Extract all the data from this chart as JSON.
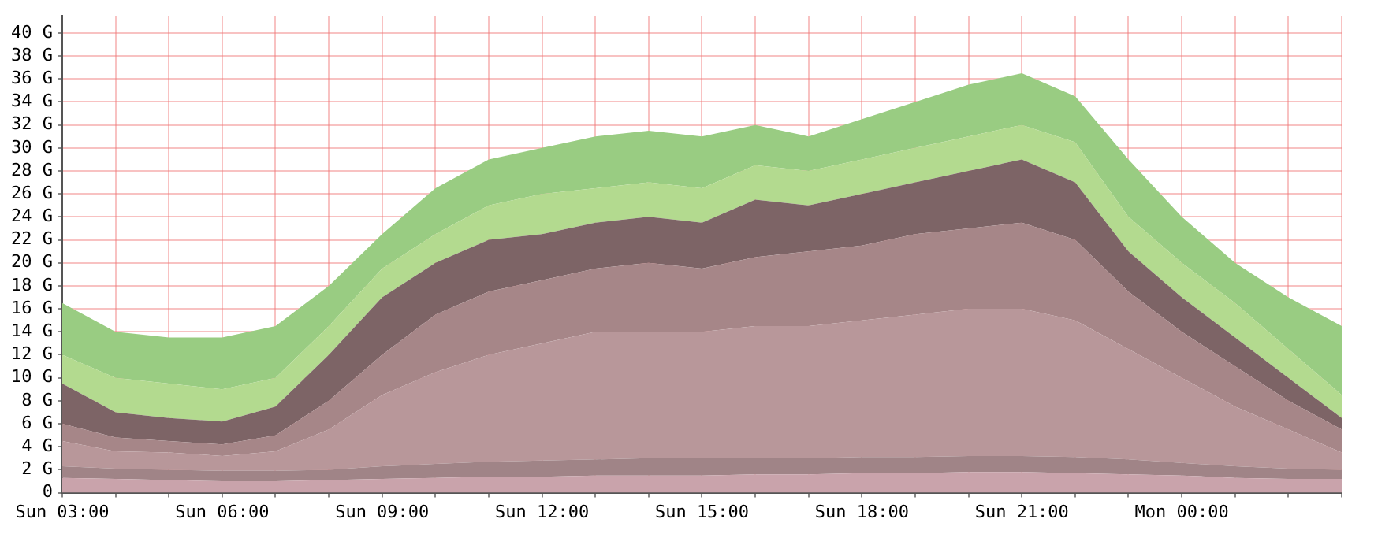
{
  "chart_data": {
    "type": "area",
    "stacked": true,
    "grid": true,
    "categories": [
      "Sun 03:00",
      null,
      null,
      "Sun 06:00",
      null,
      null,
      "Sun 09:00",
      null,
      null,
      "Sun 12:00",
      null,
      null,
      "Sun 15:00",
      null,
      null,
      "Sun 18:00",
      null,
      null,
      "Sun 21:00",
      null,
      null,
      "Mon 00:00",
      null,
      null,
      null
    ],
    "ylim": [
      0,
      41.5
    ],
    "yticks": [
      0,
      {
        "value": 2,
        "label": "2 G"
      },
      {
        "value": 4,
        "label": "4 G"
      },
      {
        "value": 6,
        "label": "6 G"
      },
      {
        "value": 8,
        "label": "8 G"
      },
      {
        "value": 10,
        "label": "10 G"
      },
      {
        "value": 12,
        "label": "12 G"
      },
      {
        "value": 14,
        "label": "14 G"
      },
      {
        "value": 16,
        "label": "16 G"
      },
      {
        "value": 18,
        "label": "18 G"
      },
      {
        "value": 20,
        "label": "20 G"
      },
      {
        "value": 22,
        "label": "22 G"
      },
      {
        "value": 24,
        "label": "24 G"
      },
      {
        "value": 26,
        "label": "26 G"
      },
      {
        "value": 28,
        "label": "28 G"
      },
      {
        "value": 30,
        "label": "30 G"
      },
      {
        "value": 32,
        "label": "32 G"
      },
      {
        "value": 34,
        "label": "34 G"
      },
      {
        "value": 36,
        "label": "36 G"
      },
      {
        "value": 38,
        "label": "38 G"
      },
      {
        "value": 40,
        "label": "40 G"
      }
    ],
    "series": [
      {
        "color": "#c9a3ab",
        "values": [
          1.3,
          1.2,
          1.1,
          1.0,
          1.0,
          1.1,
          1.2,
          1.3,
          1.4,
          1.4,
          1.5,
          1.5,
          1.5,
          1.6,
          1.6,
          1.7,
          1.7,
          1.8,
          1.8,
          1.7,
          1.6,
          1.5,
          1.3,
          1.2,
          1.2
        ]
      },
      {
        "color": "#a08487",
        "values": [
          1.0,
          0.9,
          0.9,
          0.9,
          0.9,
          0.9,
          1.1,
          1.2,
          1.3,
          1.4,
          1.4,
          1.5,
          1.5,
          1.4,
          1.4,
          1.4,
          1.4,
          1.4,
          1.4,
          1.4,
          1.3,
          1.1,
          1.0,
          0.9,
          0.8
        ]
      },
      {
        "color": "#b8979a",
        "values": [
          2.2,
          1.5,
          1.5,
          1.3,
          1.7,
          3.5,
          6.2,
          8.0,
          9.3,
          10.2,
          11.1,
          11.0,
          11.0,
          11.5,
          11.5,
          11.9,
          12.4,
          12.8,
          12.8,
          11.9,
          9.6,
          7.4,
          5.2,
          3.4,
          1.5
        ]
      },
      {
        "color": "#a68688",
        "values": [
          1.5,
          1.2,
          1.0,
          1.0,
          1.4,
          2.5,
          3.5,
          5.0,
          5.5,
          5.5,
          5.5,
          6.0,
          5.5,
          6.0,
          6.5,
          6.5,
          7.0,
          7.0,
          7.5,
          7.0,
          5.0,
          4.0,
          3.5,
          2.5,
          2.0
        ]
      },
      {
        "color": "#7d6466",
        "values": [
          3.5,
          2.2,
          2.0,
          2.0,
          2.5,
          4.0,
          5.0,
          4.5,
          4.5,
          4.0,
          4.0,
          4.0,
          4.0,
          5.0,
          4.0,
          4.5,
          4.5,
          5.0,
          5.5,
          5.0,
          3.5,
          3.0,
          2.5,
          2.0,
          1.0
        ]
      },
      {
        "color": "#b3da8f",
        "values": [
          2.5,
          3.0,
          3.0,
          2.8,
          2.5,
          2.5,
          2.5,
          2.5,
          3.0,
          3.5,
          3.0,
          3.0,
          3.0,
          3.0,
          3.0,
          3.0,
          3.0,
          3.0,
          3.0,
          3.5,
          3.0,
          3.0,
          3.0,
          2.5,
          2.0
        ]
      },
      {
        "color": "#99cc82",
        "values": [
          4.5,
          4.0,
          4.0,
          4.5,
          4.5,
          3.5,
          3.0,
          4.0,
          4.0,
          4.0,
          4.5,
          4.5,
          4.5,
          3.5,
          3.0,
          3.5,
          4.0,
          4.5,
          4.5,
          4.0,
          5.0,
          4.0,
          3.5,
          4.5,
          6.0
        ]
      }
    ]
  }
}
